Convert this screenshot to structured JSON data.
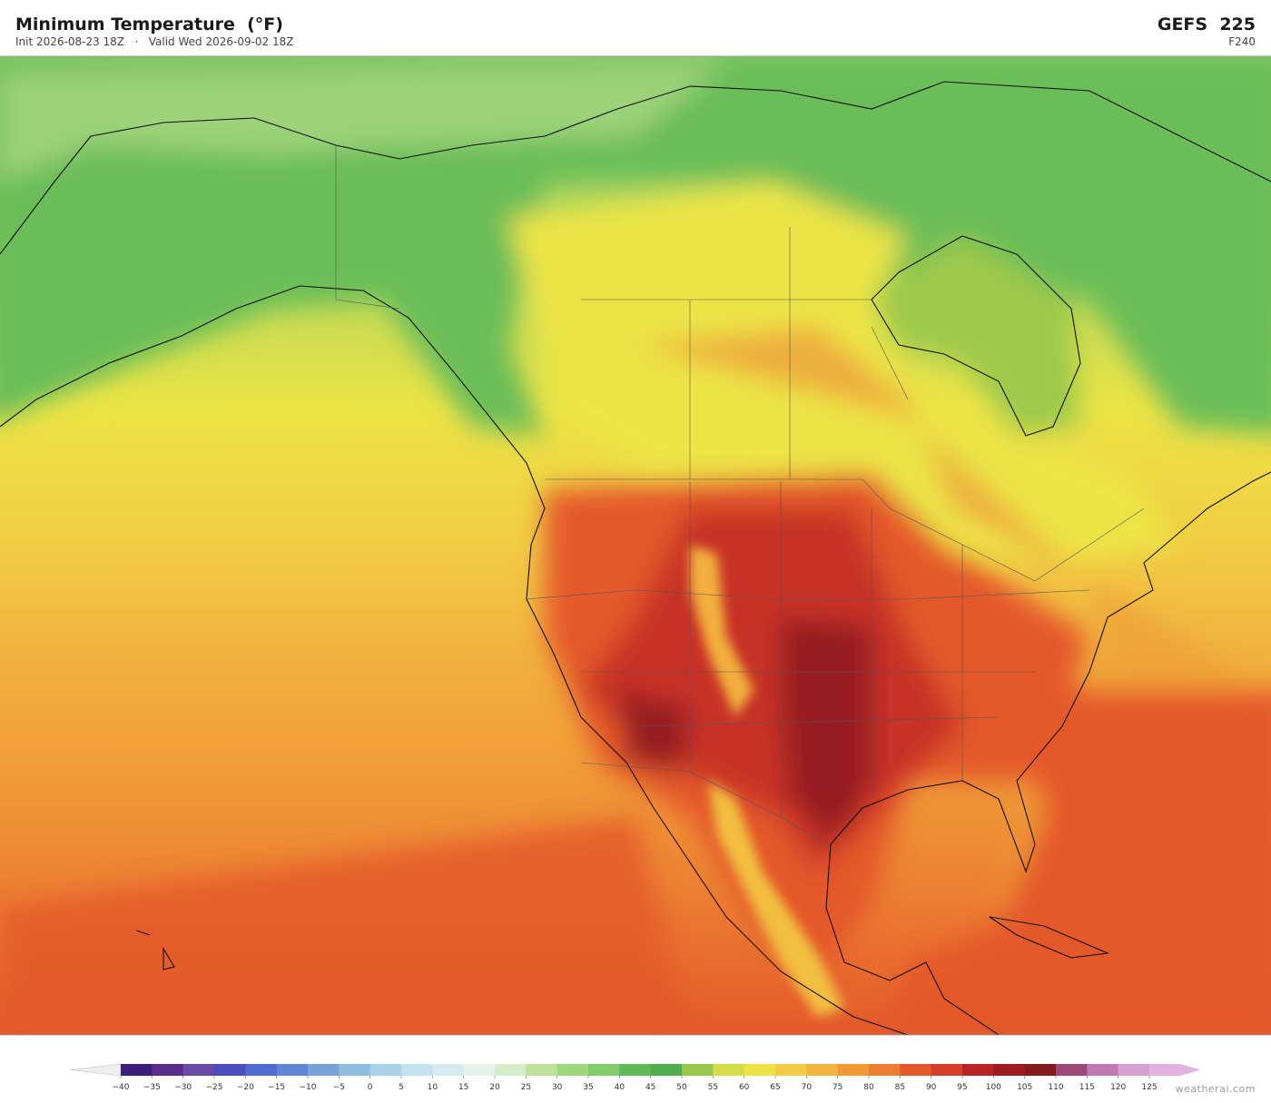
{
  "header": {
    "title": "Minimum Temperature  (°F)",
    "subtitle": "Init 2026-08-23 18Z   ·   Valid Wed 2026-09-02 18Z",
    "model": "GEFS  225",
    "forecast_hour": "F240"
  },
  "colorbar": {
    "ticks": [
      {
        "value": -40,
        "label": "−40"
      },
      {
        "value": -35,
        "label": "−35"
      },
      {
        "value": -30,
        "label": "−30"
      },
      {
        "value": -25,
        "label": "−25"
      },
      {
        "value": -20,
        "label": "−20"
      },
      {
        "value": -15,
        "label": "−15"
      },
      {
        "value": -10,
        "label": "−10"
      },
      {
        "value": -5,
        "label": "−5"
      },
      0,
      5,
      10,
      15,
      20,
      25,
      30,
      35,
      40,
      45,
      50,
      55,
      60,
      65,
      70,
      75,
      80,
      85,
      90,
      95,
      100,
      105,
      110,
      115,
      120,
      125
    ],
    "colors": [
      "#eeeeee",
      "#3b1f7a",
      "#5a2d8c",
      "#6a4aa8",
      "#4a4fc0",
      "#4f6ad0",
      "#5f86d4",
      "#77a3d8",
      "#8fbde0",
      "#a8d2e8",
      "#c2e2ef",
      "#d6ebf0",
      "#e4f2ea",
      "#d4ecc8",
      "#bde29a",
      "#9fd77e",
      "#82cc6a",
      "#5fb95a",
      "#4fae4f",
      "#98c84a",
      "#d4dd48",
      "#ece446",
      "#f2cc44",
      "#f2b43e",
      "#f09a38",
      "#ec7e32",
      "#e4592c",
      "#d63f28",
      "#b82524",
      "#9c1c20",
      "#851a1e",
      "#9e4a78",
      "#c278b0",
      "#d8a0d0",
      "#e2b2e0"
    ]
  },
  "footer": {
    "credit": "weatherai.com"
  }
}
